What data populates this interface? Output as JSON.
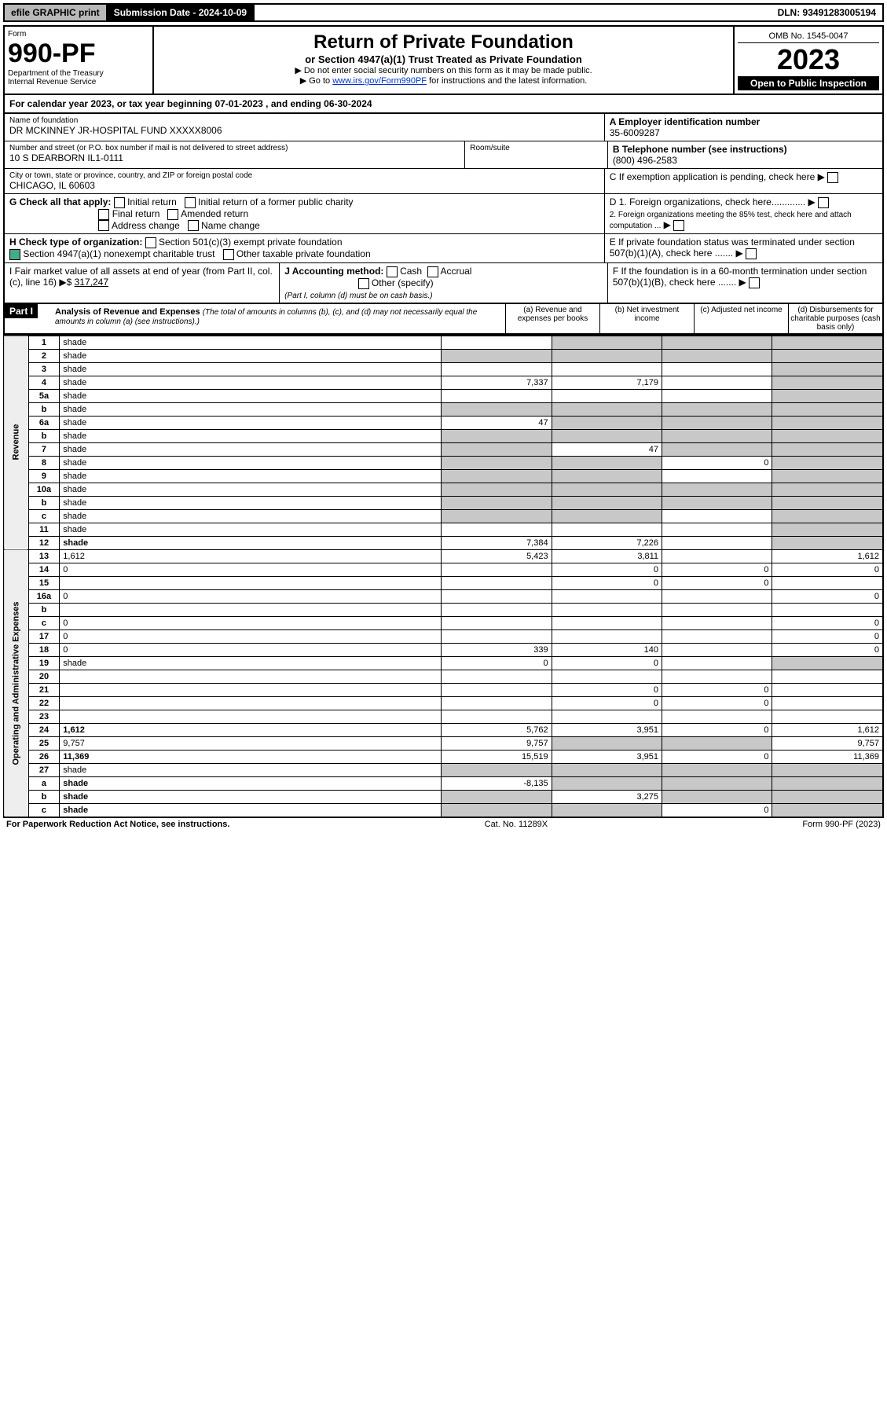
{
  "topbar": {
    "efile": "efile GRAPHIC print",
    "submission_label": "Submission Date - 2024-10-09",
    "dln": "DLN: 93491283005194"
  },
  "header": {
    "form_word": "Form",
    "form_number": "990-PF",
    "dept": "Department of the Treasury",
    "irs": "Internal Revenue Service",
    "title": "Return of Private Foundation",
    "subtitle": "or Section 4947(a)(1) Trust Treated as Private Foundation",
    "instr1": "▶ Do not enter social security numbers on this form as it may be made public.",
    "instr2_pre": "▶ Go to ",
    "instr2_link": "www.irs.gov/Form990PF",
    "instr2_post": " for instructions and the latest information.",
    "omb": "OMB No. 1545-0047",
    "year": "2023",
    "open": "Open to Public Inspection"
  },
  "calyear": "For calendar year 2023, or tax year beginning 07-01-2023             , and ending 06-30-2024",
  "entity": {
    "name_label": "Name of foundation",
    "name": "DR MCKINNEY JR-HOSPITAL FUND XXXXX8006",
    "addr_label": "Number and street (or P.O. box number if mail is not delivered to street address)",
    "addr": "10 S DEARBORN IL1-0111",
    "room_label": "Room/suite",
    "city_label": "City or town, state or province, country, and ZIP or foreign postal code",
    "city": "CHICAGO, IL  60603",
    "A_label": "A Employer identification number",
    "A_val": "35-6009287",
    "B_label": "B Telephone number (see instructions)",
    "B_val": "(800) 496-2583",
    "C_label": "C If exemption application is pending, check here",
    "D1": "D 1. Foreign organizations, check here.............",
    "D2": "2. Foreign organizations meeting the 85% test, check here and attach computation ...",
    "E": "E  If private foundation status was terminated under section 507(b)(1)(A), check here .......",
    "F": "F  If the foundation is in a 60-month termination under section 507(b)(1)(B), check here .......",
    "G_label": "G Check all that apply:",
    "G_opts": [
      "Initial return",
      "Final return",
      "Address change",
      "Initial return of a former public charity",
      "Amended return",
      "Name change"
    ],
    "H_label": "H Check type of organization:",
    "H_opt1": "Section 501(c)(3) exempt private foundation",
    "H_opt2": "Section 4947(a)(1) nonexempt charitable trust",
    "H_opt3": "Other taxable private foundation",
    "I_label": "I Fair market value of all assets at end of year (from Part II, col. (c), line 16) ▶$",
    "I_val": "317,247",
    "J_label": "J Accounting method:",
    "J_opts": [
      "Cash",
      "Accrual",
      "Other (specify)"
    ],
    "J_note": "(Part I, column (d) must be on cash basis.)"
  },
  "part1": {
    "badge": "Part I",
    "title": "Analysis of Revenue and Expenses",
    "title_note": "(The total of amounts in columns (b), (c), and (d) may not necessarily equal the amounts in column (a) (see instructions).)",
    "col_a": "(a)  Revenue and expenses per books",
    "col_b": "(b)  Net investment income",
    "col_c": "(c)  Adjusted net income",
    "col_d": "(d)  Disbursements for charitable purposes (cash basis only)"
  },
  "side_labels": {
    "rev": "Revenue",
    "opexp": "Operating and Administrative Expenses"
  },
  "rows": [
    {
      "n": "1",
      "d": "shade",
      "a": "",
      "b": "shade",
      "c": "shade"
    },
    {
      "n": "2",
      "d": "shade",
      "a": "shade",
      "b": "shade",
      "c": "shade"
    },
    {
      "n": "3",
      "d": "shade",
      "a": "",
      "b": "",
      "c": ""
    },
    {
      "n": "4",
      "d": "shade",
      "a": "7,337",
      "b": "7,179",
      "c": ""
    },
    {
      "n": "5a",
      "d": "shade",
      "a": "",
      "b": "",
      "c": ""
    },
    {
      "n": "b",
      "d": "shade",
      "a": "shade",
      "b": "shade",
      "c": "shade"
    },
    {
      "n": "6a",
      "d": "shade",
      "a": "47",
      "b": "shade",
      "c": "shade"
    },
    {
      "n": "b",
      "d": "shade",
      "a": "shade",
      "b": "shade",
      "c": "shade"
    },
    {
      "n": "7",
      "d": "shade",
      "a": "shade",
      "b": "47",
      "c": "shade"
    },
    {
      "n": "8",
      "d": "shade",
      "a": "shade",
      "b": "shade",
      "c": "0"
    },
    {
      "n": "9",
      "d": "shade",
      "a": "shade",
      "b": "shade",
      "c": ""
    },
    {
      "n": "10a",
      "d": "shade",
      "a": "shade",
      "b": "shade",
      "c": "shade"
    },
    {
      "n": "b",
      "d": "shade",
      "a": "shade",
      "b": "shade",
      "c": "shade"
    },
    {
      "n": "c",
      "d": "shade",
      "a": "shade",
      "b": "shade",
      "c": ""
    },
    {
      "n": "11",
      "d": "shade",
      "a": "",
      "b": "",
      "c": ""
    },
    {
      "n": "12",
      "d": "shade",
      "bold": true,
      "a": "7,384",
      "b": "7,226",
      "c": ""
    },
    {
      "n": "13",
      "d": "1,612",
      "a": "5,423",
      "b": "3,811",
      "c": ""
    },
    {
      "n": "14",
      "d": "0",
      "a": "",
      "b": "0",
      "c": "0"
    },
    {
      "n": "15",
      "d": "",
      "a": "",
      "b": "0",
      "c": "0"
    },
    {
      "n": "16a",
      "d": "0",
      "a": "",
      "b": "",
      "c": ""
    },
    {
      "n": "b",
      "d": "",
      "a": "",
      "b": "",
      "c": ""
    },
    {
      "n": "c",
      "d": "0",
      "a": "",
      "b": "",
      "c": ""
    },
    {
      "n": "17",
      "d": "0",
      "a": "",
      "b": "",
      "c": ""
    },
    {
      "n": "18",
      "d": "0",
      "a": "339",
      "b": "140",
      "c": ""
    },
    {
      "n": "19",
      "d": "shade",
      "a": "0",
      "b": "0",
      "c": ""
    },
    {
      "n": "20",
      "d": "",
      "a": "",
      "b": "",
      "c": ""
    },
    {
      "n": "21",
      "d": "",
      "a": "",
      "b": "0",
      "c": "0"
    },
    {
      "n": "22",
      "d": "",
      "a": "",
      "b": "0",
      "c": "0"
    },
    {
      "n": "23",
      "d": "",
      "a": "",
      "b": "",
      "c": ""
    },
    {
      "n": "24",
      "d": "1,612",
      "bold": true,
      "a": "5,762",
      "b": "3,951",
      "c": "0"
    },
    {
      "n": "25",
      "d": "9,757",
      "a": "9,757",
      "b": "shade",
      "c": "shade"
    },
    {
      "n": "26",
      "d": "11,369",
      "bold": true,
      "a": "15,519",
      "b": "3,951",
      "c": "0"
    },
    {
      "n": "27",
      "d": "shade",
      "a": "shade",
      "b": "shade",
      "c": "shade"
    },
    {
      "n": "a",
      "d": "shade",
      "bold": true,
      "a": "-8,135",
      "b": "shade",
      "c": "shade"
    },
    {
      "n": "b",
      "d": "shade",
      "bold": true,
      "a": "shade",
      "b": "3,275",
      "c": "shade"
    },
    {
      "n": "c",
      "d": "shade",
      "bold": true,
      "a": "shade",
      "b": "shade",
      "c": "0"
    }
  ],
  "footer": {
    "left": "For Paperwork Reduction Act Notice, see instructions.",
    "mid": "Cat. No. 11289X",
    "right": "Form 990-PF (2023)"
  },
  "colors": {
    "shade": "#c8c8c8",
    "link": "#0033cc",
    "topbar_grey": "#b8b8b8",
    "check_green": "#44aa88"
  }
}
